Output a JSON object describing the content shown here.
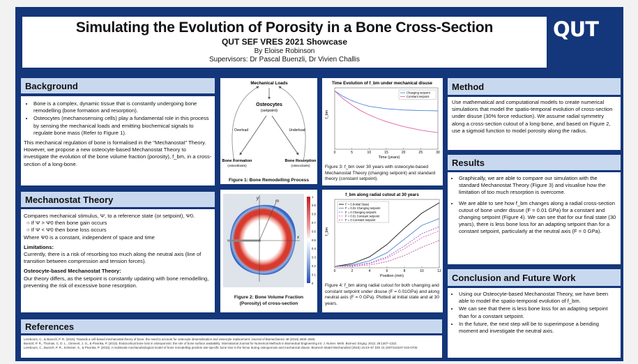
{
  "header": {
    "title": "Simulating the Evolution of Porosity in a Bone Cross-Section",
    "subtitle": "QUT SEF VRES 2021 Showcase",
    "author": "By Eloise Robinson",
    "supervisors": "Supervisors: Dr Pascal Buenzli, Dr Vivien Challis",
    "logo": "QUT"
  },
  "background": {
    "heading": "Background",
    "bullet1": "Bone is a complex, dynamic tissue that is constantly undergoing bone remodelling (bone formation and resorption).",
    "bullet2": "Osteocytes (mechanosensing cells) play a fundamental role in this process by sensing the mechanical loads and emitting biochemical signals to regulate bone mass (Refer to Figure 1).",
    "para": "This mechanical regulation of bone is formalised in the \"Mechanostat\" Theory. However, we propose a new osteocyte-based Mechanostat Theory to investigate the evolution of the bone volume fraction (porosity), f_bm, in a cross-section of a long-bone."
  },
  "mechanostat": {
    "heading": "Mechanostat Theory",
    "line1": "Compares mechanical stimulus, Ψ, to a reference state (or setpoint), Ψ0.",
    "opt1": "If Ψ > Ψ0 then bone gain occurs",
    "opt2": "If Ψ < Ψ0 then bone loss occurs",
    "line2": "Where Ψ0 is a constant, independent of space and time",
    "lim_title": "Limitations:",
    "lim_text": "Currently, there is a risk of resorbing too much along the neutral axis (line of transition between compression and tension forces).",
    "osteo_title": "Osteocyte-based Mechanostat Theory:",
    "osteo_text": "Our theory differs, as the setpoint is constantly updating with bone remodelling, preventing the risk of excessive bone resorption."
  },
  "references": {
    "heading": "References",
    "items": [
      "Lerebours, C., & Buenzli, P. R. (2016). Towards a cell-based mechanostat theory of bone: the need to account for osteocyte desensitisation and osteocyte replacement. Journal of Biomechanics 49 (2016) 2600–2606.",
      "Buenzli, P. R., Thomas, C. D. L., Clement, J. G., & Pivonka, P. (2013). Endocortical bone loss in osteoporosis: the role of bone surface availability. International Journal for Numerical Methods in Biomedical Engineering Int. J. Numer. Meth. Biomed. Engng. 2013; 29:1307–1322.",
      "Lerebours, C., Buenzli, P. R., Scheiner, S., & Pivonka, P. (2015). A multiscale mechanobiological model of bone remodelling predicts site-specific bone loss in the femur during osteoporosis and mechanical disuse. Biomech Model Mechanobiol (2016) 15:43–67 DOI 10.1007/s10237-015-0705-"
    ]
  },
  "fig1": {
    "top_label": "Mechanical Loads",
    "center_label": "Osteocytes",
    "center_sub": "(setpoint)",
    "left_arrow": "Overload",
    "right_arrow": "Underload",
    "bl": "Bone Formation",
    "bl_sub": "(osteoblasts)",
    "br": "Bone Resorption",
    "br_sub": "(osteoclasts)",
    "caption": "Figure 1: Bone Remodelling Process"
  },
  "fig2": {
    "caption": "Figure 2: Bone Volume Fraction (Porosity) of cross-section",
    "axis_x": "x",
    "axis_y": "y",
    "axis_m": "m",
    "colorbar_ticks": [
      "1",
      "0.9",
      "0.8",
      "0.7",
      "0.6",
      "0.5",
      "0.4",
      "0.3",
      "0.2",
      "0.1",
      "0"
    ]
  },
  "fig3": {
    "caption": "Figure 3: f_bm over 30 years with osteocyte-based Mechanostat Theory (changing setpoint) and standard theory (constant setpoint).",
    "chart_data": {
      "type": "line",
      "title": "Time Evolution of f_bm under mechanical disuse",
      "xlabel": "Time (years)",
      "ylabel": "f_bm",
      "x": [
        0,
        2.5,
        5,
        7.5,
        10,
        12.5,
        15,
        17.5,
        20,
        22.5,
        25,
        27.5,
        30
      ],
      "xlim": [
        0,
        30
      ],
      "xticks": [
        "0",
        "5",
        "10",
        "15",
        "20",
        "25",
        "30"
      ],
      "ylim": [
        0,
        1
      ],
      "series": [
        {
          "name": "Changing setpoint",
          "color": "#4c84d8",
          "values": [
            0.95,
            0.86,
            0.79,
            0.74,
            0.7,
            0.68,
            0.66,
            0.65,
            0.64,
            0.635,
            0.63,
            0.628,
            0.625
          ]
        },
        {
          "name": "Constant setpoint",
          "color": "#e060a8",
          "values": [
            0.95,
            0.82,
            0.72,
            0.63,
            0.56,
            0.5,
            0.45,
            0.41,
            0.37,
            0.34,
            0.31,
            0.29,
            0.27
          ]
        }
      ]
    }
  },
  "fig4": {
    "caption": "Figure 4: f_bm along radial cutout for both changing and constant setpoint under disuse (F = 0.01GPa) and along neutral axis (F = 0 GPa). Plotted at initial state and at 30 years.",
    "chart_data": {
      "type": "line",
      "title": "f_bm along radial cutout at 30 years",
      "xlabel": "Position (mm)",
      "ylabel": "f_bm",
      "x": [
        0,
        2,
        4,
        6,
        8,
        10,
        12
      ],
      "xlim": [
        0,
        12
      ],
      "xticks": [
        "0",
        "2",
        "4",
        "6",
        "8",
        "10",
        "12"
      ],
      "ylim": [
        0,
        1
      ],
      "legend_position": "top-left",
      "series": [
        {
          "name": "F = 0 (Initial State)",
          "color": "#111111",
          "values": [
            0.02,
            0.06,
            0.16,
            0.34,
            0.58,
            0.8,
            0.95
          ]
        },
        {
          "name": "F = 0.01 Changing setpoint",
          "color": "#4c84d8",
          "values": [
            0.02,
            0.04,
            0.1,
            0.22,
            0.42,
            0.62,
            0.72
          ]
        },
        {
          "name": "F = 0 Changing setpoint",
          "color": "#7a5fcf",
          "values": [
            0.02,
            0.03,
            0.07,
            0.16,
            0.32,
            0.5,
            0.6
          ]
        },
        {
          "name": "F = 0.01 Constant setpoint",
          "color": "#e060a8",
          "values": [
            0.02,
            0.03,
            0.06,
            0.14,
            0.28,
            0.44,
            0.54
          ]
        },
        {
          "name": "F = 0 Constant setpoint",
          "color": "#c04aa0",
          "values": [
            0.02,
            0.02,
            0.04,
            0.09,
            0.18,
            0.3,
            0.4
          ]
        }
      ]
    }
  },
  "method": {
    "heading": "Method",
    "text": "Use mathematical and computational models to create numerical simulations that model the spatio-temporal evolution of cross-section under disuse (30% force reduction). We assume radial symmetry along a cross-section cutout of a long-bone, and based on Figure 2, use a sigmoid function to model porosity along the radius."
  },
  "results": {
    "heading": "Results",
    "bullet1": "Graphically, we are able to compare our simulation with the standard Mechanostat Theory (Figure 3) and visualise how the limitation of too much resorption is overcome.",
    "bullet2": "We are able to see how f_bm changes along a radial cross-section cutout of bone under disuse (F = 0.01 GPa) for a constant and changing setpoint (Figure 4). We can see that for our final state (30 years), there is less bone loss for an adapting setpoint than for a constant setpoint, particularly at the neutral axis (F = 0 GPa)."
  },
  "conclusion": {
    "heading": "Conclusion and Future Work",
    "bullet1": "Using our Osteocyte-based Mechanostat Theory, we have been able to model the spatio-temporal evolution of f_bm.",
    "bullet2": "We can see that there is less bone loss for an adapting setpoint than for a constant setpoint.",
    "bullet3": "In the future, the next step will be to superimpose a bending moment and investigate the neutral axis."
  }
}
